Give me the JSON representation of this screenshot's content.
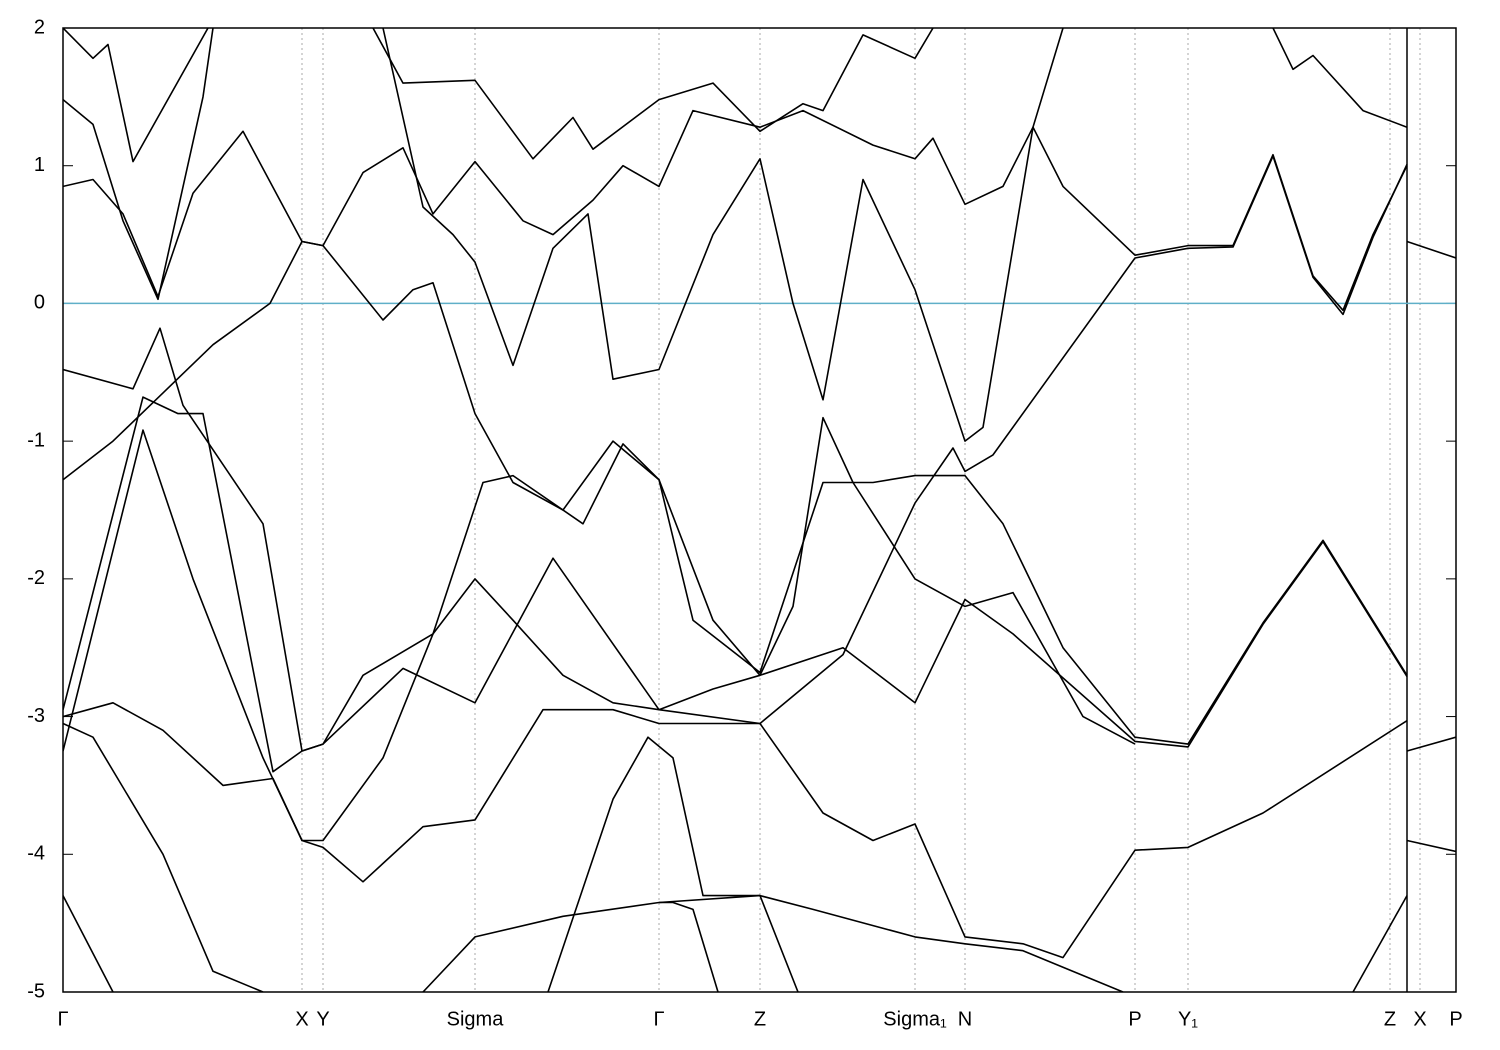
{
  "chart_data": {
    "type": "line",
    "xlim": [
      0,
      13.93
    ],
    "ylim": [
      -5,
      2
    ],
    "yticks": [
      -5,
      -4,
      -3,
      -2,
      -1,
      0,
      1,
      2
    ],
    "xticks": [
      {
        "value": 0,
        "label": "Γ"
      },
      {
        "value": 2.39,
        "label": "X"
      },
      {
        "value": 2.6,
        "label": "Y"
      },
      {
        "value": 4.12,
        "label": "Sigma"
      },
      {
        "value": 5.96,
        "label": "Γ"
      },
      {
        "value": 6.97,
        "label": "Z"
      },
      {
        "value": 8.52,
        "label": "Sigma₁"
      },
      {
        "value": 9.02,
        "label": "N"
      },
      {
        "value": 10.72,
        "label": "P"
      },
      {
        "value": 11.25,
        "label": "Y₁"
      },
      {
        "value": 13.27,
        "label": "Z"
      },
      {
        "value": 13.57,
        "label": "X"
      },
      {
        "value": 13.93,
        "label": "P"
      }
    ],
    "grid": true,
    "break_at": 13.44,
    "hline": 0,
    "hline_color": "#5fafc8",
    "series": [
      {
        "color": "#000000",
        "x": [
          0,
          0.5,
          1,
          1.5,
          2.07,
          2.39,
          2.6,
          3.0,
          3.4,
          3.7,
          4.12,
          4.6,
          4.9,
          5.3,
          5.6,
          5.96,
          6.3,
          6.97,
          7.4,
          8.1,
          8.52,
          8.7,
          9.02,
          9.4,
          9.7,
          10.0,
          10.72,
          11.25,
          11.7,
          12.1,
          12.5,
          12.8,
          13.1,
          13.44
        ],
        "values": [
          -1.28,
          -1.0,
          -0.65,
          -0.3,
          0,
          0.45,
          0.42,
          0.95,
          1.13,
          0.65,
          1.03,
          0.6,
          0.5,
          0.75,
          1.0,
          0.85,
          1.4,
          1.28,
          1.4,
          1.15,
          1.05,
          1.2,
          0.72,
          0.85,
          1.28,
          0.85,
          0.35,
          0.42,
          0.42,
          1.08,
          0.2,
          -0.05,
          0.5,
          1.0
        ]
      },
      {
        "color": "#000000",
        "x": [
          0,
          0.3,
          0.6,
          0.95,
          1.3,
          1.8,
          2.39,
          2.6,
          3.2,
          3.5,
          3.7,
          4.12,
          4.5,
          5.0,
          5.5,
          5.96,
          6.5,
          6.97,
          7.8,
          8.52,
          9.02,
          9.5,
          10.72,
          11.25,
          12.0,
          12.6,
          13.44
        ],
        "values": [
          0.85,
          0.9,
          0.65,
          0.05,
          0.8,
          1.25,
          0.45,
          0.42,
          -0.12,
          0.1,
          0.15,
          -0.8,
          -1.3,
          -1.5,
          -1.0,
          -1.28,
          -2.3,
          -2.7,
          -2.5,
          -2.9,
          -2.15,
          -2.4,
          -3.18,
          -3.22,
          -2.33,
          -1.73,
          -2.71
        ]
      },
      {
        "color": "#000000",
        "x": [
          0,
          0.7,
          0.97,
          1.2,
          2.0,
          2.39,
          2.6,
          3.4,
          4.12,
          4.9,
          5.96,
          6.97,
          7.6,
          8.1,
          8.52,
          9.02,
          9.6,
          10.0,
          10.72,
          11.25,
          12.0,
          13.44
        ],
        "values": [
          -0.48,
          -0.62,
          -0.18,
          -0.74,
          -1.6,
          -3.25,
          -3.2,
          -2.65,
          -2.9,
          -1.85,
          -2.95,
          -3.05,
          -3.7,
          -3.9,
          -3.78,
          -4.6,
          -4.65,
          -4.75,
          -3.97,
          -3.95,
          -3.7,
          -3.03
        ]
      },
      {
        "color": "#000000",
        "x": [
          0,
          0.8,
          1.15,
          1.4,
          2.1,
          2.39,
          2.6,
          3.0,
          3.7,
          4.2,
          4.5,
          5.2,
          5.6,
          5.96,
          6.3,
          6.97,
          7.6,
          8.1,
          8.52,
          9.02,
          9.4,
          10.0,
          10.72,
          11.25,
          12.0,
          12.6,
          13.44
        ],
        "values": [
          -2.95,
          -0.68,
          -0.8,
          -0.8,
          -3.4,
          -3.25,
          -3.2,
          -2.7,
          -2.4,
          -1.3,
          -1.25,
          -1.6,
          -1.02,
          -1.28,
          -2.3,
          -2.68,
          -1.3,
          -1.3,
          -1.25,
          -1.25,
          -1.6,
          -2.5,
          -3.15,
          -3.2,
          -2.32,
          -1.72,
          -2.7
        ]
      },
      {
        "color": "#000000",
        "x": [
          0,
          0.8,
          1.3,
          2.0,
          2.39,
          2.6,
          3.0,
          3.6,
          4.12,
          4.8,
          5.5,
          5.96,
          6.97,
          7.8,
          8.52,
          8.9,
          9.02,
          9.3,
          10.72,
          11.25,
          11.7,
          12.1,
          12.5,
          12.8,
          13.1,
          13.44
        ],
        "values": [
          -3.25,
          -0.92,
          -2.0,
          -3.3,
          -3.9,
          -3.95,
          -4.2,
          -3.8,
          -3.75,
          -2.95,
          -2.95,
          -3.05,
          -3.05,
          -2.55,
          -1.45,
          -1.05,
          -1.22,
          -1.1,
          0.33,
          0.4,
          0.41,
          1.07,
          0.19,
          -0.08,
          0.48,
          1.01
        ]
      },
      {
        "color": "#000000",
        "x": [
          0,
          0.5,
          1.0,
          1.6,
          2.1,
          2.39,
          2.6,
          3.2,
          3.7,
          4.12,
          4.5,
          5.0,
          5.5,
          5.96,
          6.5,
          6.97,
          7.3,
          7.6,
          7.9,
          8.52,
          9.02,
          9.5,
          10.2,
          10.72
        ],
        "values": [
          -3.0,
          -2.9,
          -3.1,
          -3.5,
          -3.45,
          -3.9,
          -3.9,
          -3.3,
          -2.4,
          -2.0,
          -2.3,
          -2.7,
          -2.9,
          -2.95,
          -2.8,
          -2.7,
          -2.2,
          -0.83,
          -1.3,
          -2.0,
          -2.2,
          -2.1,
          -3.0,
          -3.2
        ]
      },
      {
        "color": "#000000",
        "x": [
          0,
          0.3,
          0.6,
          0.95,
          1.4,
          1.5
        ],
        "values": [
          1.48,
          1.3,
          0.6,
          0.03,
          1.5,
          2.0
        ]
      },
      {
        "color": "#000000",
        "x": [
          0,
          0.3,
          0.45,
          0.7,
          1.45
        ],
        "values": [
          2.0,
          1.78,
          1.88,
          1.03,
          2.0
        ]
      },
      {
        "color": "#000000",
        "x": [
          3.1,
          3.4,
          4.12,
          4.7,
          5.1,
          5.3,
          5.96,
          6.5,
          6.97,
          7.4,
          7.6,
          8.0,
          8.52,
          8.7
        ],
        "values": [
          2.0,
          1.6,
          1.62,
          1.05,
          1.35,
          1.12,
          1.48,
          1.6,
          1.25,
          1.45,
          1.4,
          1.95,
          1.78,
          2.0
        ]
      },
      {
        "color": "#000000",
        "x": [
          3.2,
          3.6,
          3.9,
          4.12,
          4.5,
          4.9,
          5.25,
          5.5,
          5.96,
          6.5,
          6.97,
          7.3,
          7.6,
          8.0,
          8.52,
          9.02,
          9.2,
          9.7,
          10.0
        ],
        "values": [
          2.0,
          0.7,
          0.5,
          0.3,
          -0.45,
          0.4,
          0.65,
          -0.55,
          -0.48,
          0.5,
          1.05,
          0.0,
          -0.7,
          0.9,
          0.1,
          -1.0,
          -0.9,
          1.28,
          2.0
        ]
      },
      {
        "color": "#000000",
        "x": [
          0,
          0.5
        ],
        "values": [
          -4.3,
          -5.0
        ]
      },
      {
        "color": "#000000",
        "x": [
          3.6,
          4.12,
          5.0,
          5.96,
          6.97,
          7.5,
          8.52,
          9.02,
          9.6,
          10.6
        ],
        "values": [
          -5.0,
          -4.6,
          -4.45,
          -4.35,
          -4.3,
          -4.4,
          -4.6,
          -4.65,
          -4.7,
          -5.0
        ]
      },
      {
        "color": "#000000",
        "x": [
          0,
          0.3,
          1.0,
          1.5,
          2.0
        ],
        "values": [
          -3.05,
          -3.15,
          -4.0,
          -4.85,
          -5.0
        ]
      },
      {
        "color": "#000000",
        "x": [
          4.85,
          5.5,
          5.85,
          6.1,
          6.4,
          6.97,
          7.35
        ],
        "values": [
          -5.0,
          -3.6,
          -3.15,
          -3.3,
          -4.3,
          -4.3,
          -5.0
        ]
      },
      {
        "color": "#000000",
        "x": [
          5.96,
          6.1,
          6.3,
          6.55
        ],
        "values": [
          -4.35,
          -4.35,
          -4.4,
          -5.0
        ]
      },
      {
        "color": "#000000",
        "x": [
          12.1,
          12.3,
          12.5,
          13.0,
          13.44
        ],
        "values": [
          2.0,
          1.7,
          1.8,
          1.4,
          1.28
        ]
      },
      {
        "color": "#000000",
        "x": [
          12.9,
          13.44
        ],
        "values": [
          -5.0,
          -4.3
        ]
      },
      {
        "color": "#000000",
        "x": [
          13.44,
          13.93
        ],
        "values": [
          0.45,
          0.33
        ]
      },
      {
        "color": "#000000",
        "x": [
          13.44,
          13.93
        ],
        "values": [
          -3.25,
          -3.15
        ]
      },
      {
        "color": "#000000",
        "x": [
          13.44,
          13.93
        ],
        "values": [
          -3.9,
          -3.98
        ]
      }
    ]
  }
}
